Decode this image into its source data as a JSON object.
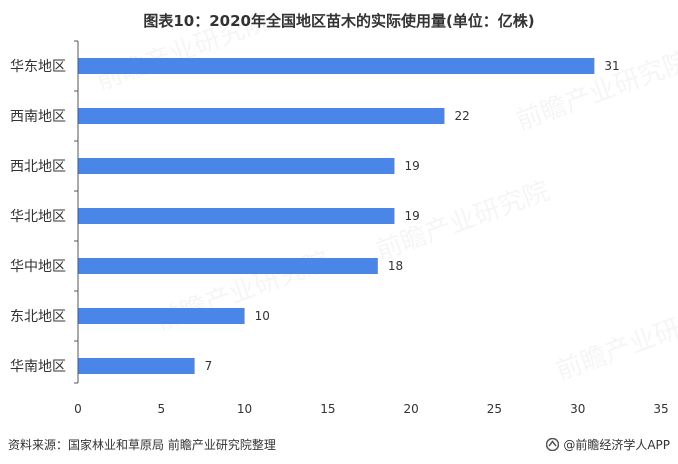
{
  "page": {
    "title": "图表10：2020年全国地区苗木的实际使用量(单位：亿株)",
    "source": "资料来源：国家林业和草原局 前瞻产业研究院整理",
    "brand": "@前瞻经济学人APP",
    "watermark": "前瞻产业研究院"
  },
  "colors": {
    "bar": "#4a86e8",
    "axis": "#555555",
    "text": "#333333"
  },
  "chart_data": {
    "type": "bar",
    "orientation": "horizontal",
    "title": "图表10：2020年全国地区苗木的实际使用量(单位：亿株)",
    "categories": [
      "华东地区",
      "西南地区",
      "西北地区",
      "华北地区",
      "华中地区",
      "东北地区",
      "华南地区"
    ],
    "values": [
      31,
      22,
      19,
      19,
      18,
      10,
      7
    ],
    "xlim": [
      0,
      35
    ],
    "xticks": [
      0,
      5,
      10,
      15,
      20,
      25,
      30,
      35
    ],
    "grid": false,
    "data_labels": true
  }
}
